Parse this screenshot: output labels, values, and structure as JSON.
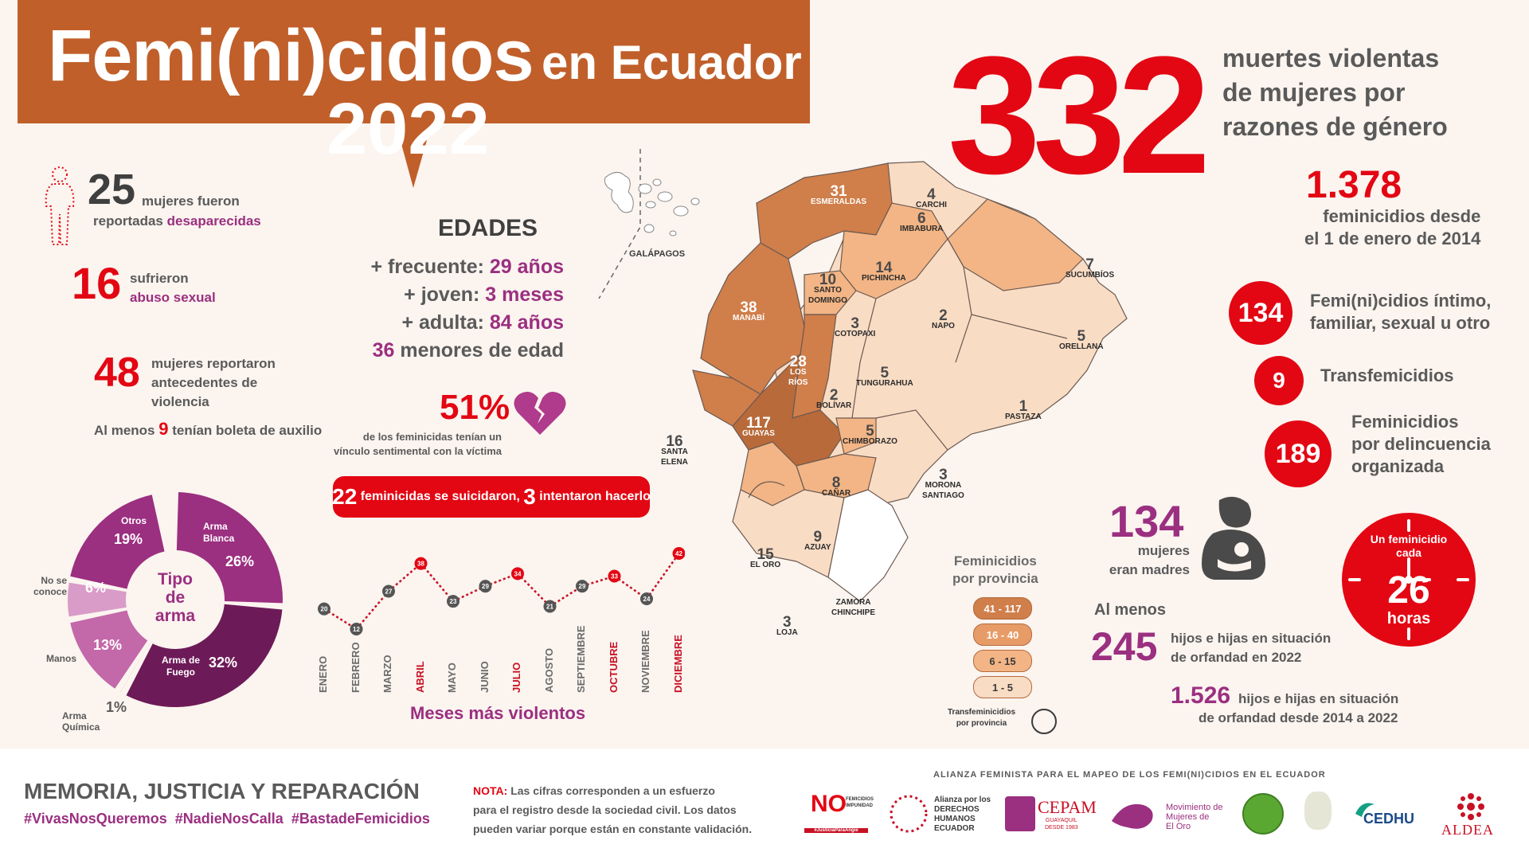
{
  "header": {
    "title": "Femi(ni)cidios",
    "subtitle": "en Ecuador",
    "year": "2022"
  },
  "colors": {
    "banner": "#c05f2a",
    "accent_red": "#e30613",
    "purple": "#9b2f80",
    "background": "#fbf4ef"
  },
  "summary": {
    "total": "332",
    "total_desc": "muertes violentas\nde mujeres por\nrazones de género",
    "since_2014_value": "1.378",
    "since_2014_desc": "feminicidios desde\nel 1 de enero de 2014",
    "intimo_value": "134",
    "intimo_desc": "Femi(ni)cidios íntimo,\nfamiliar, sexual u otro",
    "trans_value": "9",
    "trans_desc": "Transfemicidios",
    "delincuencia_value": "189",
    "delincuencia_desc": "Feminicidios\npor delincuencia\norganizada"
  },
  "left_stats": {
    "desaparecidas_value": "25",
    "desaparecidas_text_1": "mujeres fueron",
    "desaparecidas_text_2": "reportadas",
    "desaparecidas_text_3": "desaparecidas",
    "abuso_value": "16",
    "abuso_text_1": "sufrieron",
    "abuso_text_2": "abuso sexual",
    "antecedentes_value": "48",
    "antecedentes_text": "mujeres reportaron\nantecedentes de\nviolencia",
    "boleta_pre": "Al menos",
    "boleta_value": "9",
    "boleta_post": "tenían boleta de auxilio"
  },
  "edades": {
    "title": "EDADES",
    "frecuente_label": "+ frecuente:",
    "frecuente_value": "29 años",
    "joven_label": "+ joven:",
    "joven_value": "3 meses",
    "adulta_label": "+ adulta:",
    "adulta_value": "84 años",
    "menores_value": "36",
    "menores_label": "menores de edad"
  },
  "vinculo": {
    "value": "51%",
    "text": "de los feminicidas tenían un\nvínculo sentimental con la víctima"
  },
  "suicidio": {
    "value1": "22",
    "text1": "feminicidas se suicidaron,",
    "value2": "3",
    "text2": "intentaron hacerlo"
  },
  "arma_chart": {
    "center_title": "Tipo\nde\narma",
    "labels": {
      "otros": "Otros",
      "blanca": "Arma\nBlanca",
      "fuego": "Arma de\nFuego",
      "quimica": "Arma\nQuímica",
      "manos": "Manos",
      "no_conoce": "No se\nconoce"
    },
    "pcts": {
      "otros": "19%",
      "blanca": "26%",
      "fuego": "32%",
      "quimica": "1%",
      "manos": "13%",
      "no_conoce": "6%"
    }
  },
  "chart_data": {
    "type": "line",
    "title": "Meses más violentos",
    "categories": [
      "ENERO",
      "FEBRERO",
      "MARZO",
      "ABRIL",
      "MAYO",
      "JUNIO",
      "JULIO",
      "AGOSTO",
      "SEPTIEMBRE",
      "OCTUBRE",
      "NOVIEMBRE",
      "DICIEMBRE"
    ],
    "values": [
      20,
      12,
      27,
      38,
      23,
      29,
      34,
      21,
      29,
      33,
      24,
      42
    ],
    "highlighted": [
      "ABRIL",
      "JULIO",
      "OCTUBRE",
      "DICIEMBRE"
    ]
  },
  "map": {
    "galapagos": "GALÁPAGOS",
    "legend_title": "Feminicidios\npor provincia",
    "legend_ranges": [
      "41 - 117",
      "16 - 40",
      "6 - 15",
      "1 - 5"
    ],
    "legend_trans": "Transfeminicidios\npor provincia",
    "provinces": [
      {
        "name": "ESMERALDAS",
        "value": "31"
      },
      {
        "name": "CARCHI",
        "value": "4"
      },
      {
        "name": "IMBABURA",
        "value": "6"
      },
      {
        "name": "PICHINCHA",
        "value": "14"
      },
      {
        "name": "SUCUMBÍOS",
        "value": "7"
      },
      {
        "name": "SANTO\nDOMINGO",
        "value": "10"
      },
      {
        "name": "MANABÍ",
        "value": "38"
      },
      {
        "name": "COTOPAXI",
        "value": "3"
      },
      {
        "name": "NAPO",
        "value": "2"
      },
      {
        "name": "ORELLANA",
        "value": "5"
      },
      {
        "name": "LOS\nRÍOS",
        "value": "28"
      },
      {
        "name": "TUNGURAHUA",
        "value": "5"
      },
      {
        "name": "BOLÍVAR",
        "value": "2"
      },
      {
        "name": "PASTAZA",
        "value": "1"
      },
      {
        "name": "GUAYAS",
        "value": "117"
      },
      {
        "name": "SANTA\nELENA",
        "value": "16"
      },
      {
        "name": "CHIMBORAZO",
        "value": "5"
      },
      {
        "name": "CAÑAR",
        "value": "8"
      },
      {
        "name": "MORONA\nSANTIAGO",
        "value": "3"
      },
      {
        "name": "AZUAY",
        "value": "9"
      },
      {
        "name": "EL ORO",
        "value": "15"
      },
      {
        "name": "LOJA",
        "value": "3"
      },
      {
        "name": "ZAMORA\nCHINCHIPE",
        "value": ""
      }
    ]
  },
  "madres": {
    "value": "134",
    "text": "mujeres\neran madres",
    "al_menos": "Al menos",
    "orfandad_value": "245",
    "orfandad_text": "hijos e hijas en situación\nde orfandad en 2022",
    "orfandad_total_value": "1.526",
    "orfandad_total_text_1": "hijos e hijas en situación",
    "orfandad_total_text_2": "de orfandad desde 2014 a 2022"
  },
  "clock": {
    "line1": "Un feminicidio",
    "line2": "cada",
    "value": "26",
    "unit": "horas"
  },
  "footer": {
    "motto": "MEMORIA, JUSTICIA Y REPARACIÓN",
    "hashtags": "#VivasNosQueremos  #NadieNosCalla  #BastadeFemicidios",
    "nota_label": "NOTA:",
    "nota_text_1": "Las cifras corresponden a un esfuerzo",
    "nota_text_2": "para el registro desde la sociedad civil. Los datos",
    "nota_text_3": "pueden variar porque están en constante validación.",
    "alianza": "ALIANZA FEMINISTA PARA EL MAPEO DE LOS FEMI(NI)CIDIOS EN EL ECUADOR",
    "logos": {
      "no": "NO",
      "no_sub": "FEMICIDIOS\nIMPUNIDAD",
      "no_tag": "#JusticiaParaAngie",
      "ddhh": "Alianza por los\nDERECHOS\nHUMANOS\nECUADOR",
      "cepam": "CEPAM",
      "cepam_sub": "GUAYAQUIL\nDESDE 1983",
      "movimiento": "Movimiento de\nMujeres de\nEl Oro",
      "cedhu": "CEDHU",
      "aldea": "ALDEA"
    }
  }
}
